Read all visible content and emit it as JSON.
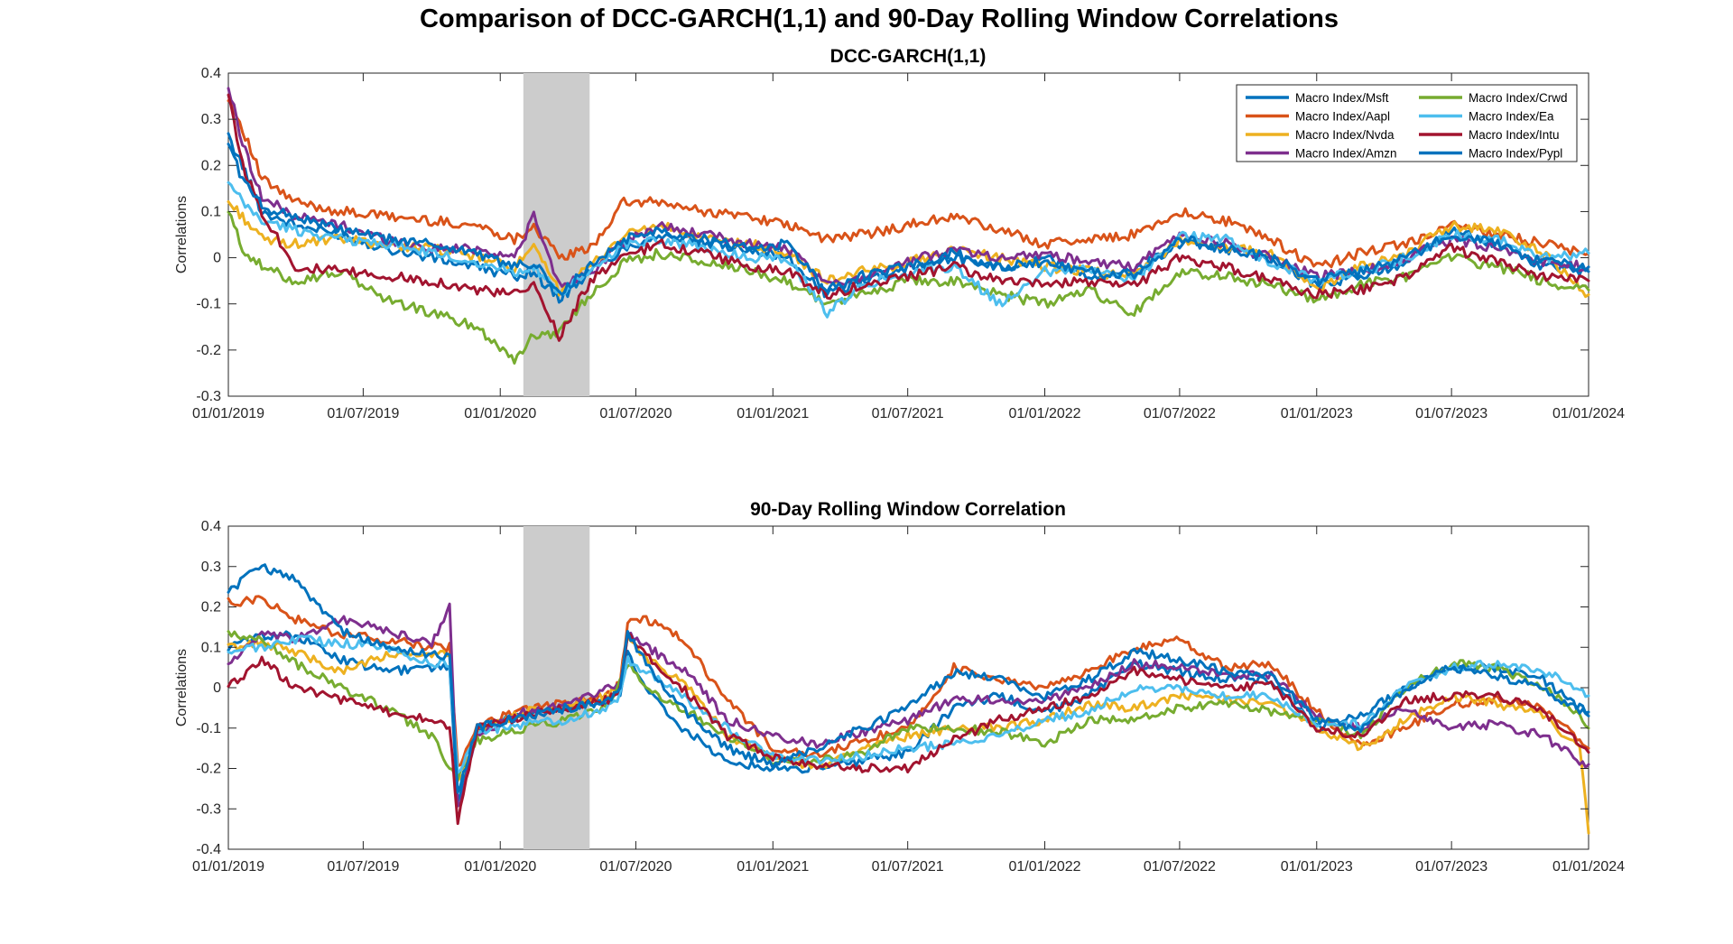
{
  "figure": {
    "title": "Comparison of DCC-GARCH(1,1) and 90-Day Rolling Window Correlations"
  },
  "colors": {
    "Msft": "#0072BD",
    "Aapl": "#D95319",
    "Nvda": "#EDB120",
    "Amzn": "#7E2F8E",
    "Crwd": "#77AC30",
    "Ea": "#4DBEEE",
    "Intu": "#A2142F",
    "Pypl": "#0072BD",
    "shade": "#cccccc"
  },
  "chart_data": [
    {
      "type": "line",
      "title": "DCC-GARCH(1,1)",
      "xlabel": "",
      "ylabel": "Correlations",
      "xlim": [
        "2019-01-01",
        "2024-01-01"
      ],
      "ylim": [
        -0.3,
        0.4
      ],
      "x_ticks": [
        "01/01/2019",
        "01/07/2019",
        "01/01/2020",
        "01/07/2020",
        "01/01/2021",
        "01/07/2021",
        "01/01/2022",
        "01/07/2022",
        "01/01/2023",
        "01/07/2023",
        "01/01/2024"
      ],
      "y_ticks": [
        "0.4",
        "0.3",
        "0.2",
        "0.1",
        "0",
        "-0.1",
        "-0.2",
        "-0.3"
      ],
      "shaded_region": [
        "2020-02-01",
        "2020-04-30"
      ],
      "grid": false,
      "legend_placement": "top-right",
      "x": [
        "2019-01-01",
        "2019-01-20",
        "2019-02-15",
        "2019-04-01",
        "2019-06-01",
        "2019-08-01",
        "2019-10-01",
        "2019-12-01",
        "2020-01-20",
        "2020-02-15",
        "2020-03-20",
        "2020-05-01",
        "2020-06-15",
        "2020-08-01",
        "2020-10-01",
        "2020-12-01",
        "2021-01-20",
        "2021-03-15",
        "2021-05-01",
        "2021-07-01",
        "2021-09-01",
        "2021-11-01",
        "2022-01-01",
        "2022-03-01",
        "2022-05-01",
        "2022-07-01",
        "2022-09-01",
        "2022-11-01",
        "2023-01-01",
        "2023-03-01",
        "2023-05-01",
        "2023-07-01",
        "2023-09-01",
        "2023-11-01",
        "2024-01-01"
      ],
      "series": [
        {
          "name": "Macro Index/Msft",
          "key": "Msft",
          "values": [
            0.26,
            0.2,
            0.1,
            0.07,
            0.05,
            0.02,
            0.0,
            -0.02,
            -0.04,
            -0.03,
            -0.09,
            -0.03,
            0.02,
            0.05,
            0.03,
            0.02,
            0.0,
            -0.08,
            -0.05,
            -0.02,
            0.0,
            -0.02,
            0.0,
            -0.04,
            -0.03,
            0.03,
            0.02,
            0.0,
            -0.06,
            -0.04,
            -0.01,
            0.06,
            0.03,
            -0.02,
            -0.03
          ]
        },
        {
          "name": "Macro Index/Aapl",
          "key": "Aapl",
          "values": [
            0.35,
            0.28,
            0.17,
            0.12,
            0.1,
            0.09,
            0.08,
            0.07,
            0.04,
            0.07,
            0.0,
            0.02,
            0.12,
            0.12,
            0.1,
            0.09,
            0.07,
            0.04,
            0.05,
            0.07,
            0.09,
            0.06,
            0.03,
            0.04,
            0.05,
            0.1,
            0.08,
            0.04,
            -0.02,
            0.01,
            0.03,
            0.07,
            0.05,
            0.03,
            0.01
          ]
        },
        {
          "name": "Macro Index/Nvda",
          "key": "Nvda",
          "values": [
            0.12,
            0.09,
            0.04,
            0.03,
            0.04,
            0.03,
            0.02,
            0.0,
            -0.02,
            0.02,
            -0.07,
            -0.02,
            0.05,
            0.07,
            0.04,
            0.03,
            0.01,
            -0.05,
            -0.03,
            -0.01,
            0.02,
            0.0,
            -0.02,
            -0.03,
            -0.04,
            0.04,
            0.02,
            0.01,
            -0.07,
            -0.02,
            0.01,
            0.07,
            0.06,
            0.01,
            -0.08
          ]
        },
        {
          "name": "Macro Index/Amzn",
          "key": "Amzn",
          "values": [
            0.37,
            0.25,
            0.13,
            0.09,
            0.07,
            0.04,
            0.02,
            0.02,
            0.0,
            0.09,
            -0.06,
            -0.03,
            0.03,
            0.07,
            0.05,
            0.03,
            0.02,
            -0.06,
            -0.04,
            -0.01,
            0.02,
            0.0,
            0.01,
            -0.01,
            -0.02,
            0.05,
            0.03,
            0.0,
            -0.04,
            -0.03,
            0.0,
            0.04,
            0.02,
            -0.01,
            -0.02
          ]
        },
        {
          "name": "Macro Index/Crwd",
          "key": "Crwd",
          "values": [
            0.1,
            0.02,
            -0.02,
            -0.05,
            -0.03,
            -0.09,
            -0.12,
            -0.15,
            -0.22,
            -0.17,
            -0.16,
            -0.08,
            -0.01,
            0.01,
            -0.01,
            -0.03,
            -0.05,
            -0.1,
            -0.08,
            -0.05,
            -0.05,
            -0.08,
            -0.1,
            -0.07,
            -0.12,
            -0.03,
            -0.04,
            -0.06,
            -0.09,
            -0.06,
            -0.04,
            0.0,
            -0.02,
            -0.05,
            -0.07
          ]
        },
        {
          "name": "Macro Index/Ea",
          "key": "Ea",
          "values": [
            0.16,
            0.12,
            0.08,
            0.06,
            0.04,
            0.03,
            0.01,
            -0.01,
            -0.03,
            -0.02,
            -0.08,
            -0.03,
            0.03,
            0.04,
            0.02,
            0.0,
            0.0,
            -0.12,
            -0.06,
            -0.03,
            -0.02,
            -0.1,
            -0.03,
            -0.02,
            -0.05,
            0.05,
            0.04,
            -0.01,
            -0.05,
            -0.03,
            0.0,
            0.05,
            0.04,
            0.0,
            0.01
          ]
        },
        {
          "name": "Macro Index/Intu",
          "key": "Intu",
          "values": [
            0.36,
            0.2,
            0.1,
            -0.02,
            -0.03,
            -0.04,
            -0.05,
            -0.07,
            -0.08,
            -0.06,
            -0.17,
            -0.05,
            0.0,
            0.03,
            0.01,
            -0.02,
            -0.03,
            -0.08,
            -0.06,
            -0.04,
            -0.02,
            -0.05,
            -0.06,
            -0.05,
            -0.06,
            0.0,
            -0.02,
            -0.05,
            -0.08,
            -0.07,
            -0.04,
            0.02,
            -0.01,
            -0.04,
            -0.05
          ]
        },
        {
          "name": "Macro Index/Pypl",
          "key": "Pypl",
          "values": [
            0.25,
            0.17,
            0.11,
            0.09,
            0.06,
            0.04,
            0.03,
            0.01,
            -0.02,
            -0.01,
            -0.08,
            -0.02,
            0.04,
            0.06,
            0.04,
            0.02,
            0.03,
            -0.07,
            -0.04,
            -0.02,
            0.01,
            -0.02,
            -0.01,
            -0.03,
            -0.04,
            0.04,
            0.02,
            0.0,
            -0.05,
            -0.03,
            0.0,
            0.05,
            0.03,
            -0.01,
            -0.02
          ]
        }
      ]
    },
    {
      "type": "line",
      "title": "90-Day Rolling Window Correlation",
      "xlabel": "",
      "ylabel": "Correlations",
      "xlim": [
        "2019-01-01",
        "2024-01-01"
      ],
      "ylim": [
        -0.4,
        0.4
      ],
      "x_ticks": [
        "01/01/2019",
        "01/07/2019",
        "01/01/2020",
        "01/07/2020",
        "01/01/2021",
        "01/07/2021",
        "01/01/2022",
        "01/07/2022",
        "01/01/2023",
        "01/07/2023",
        "01/01/2024"
      ],
      "y_ticks": [
        "0.4",
        "0.3",
        "0.2",
        "0.1",
        "0",
        "-0.1",
        "-0.2",
        "-0.3",
        "-0.4"
      ],
      "shaded_region": [
        "2020-02-01",
        "2020-04-30"
      ],
      "grid": false,
      "x": [
        "2019-01-01",
        "2019-02-15",
        "2019-04-01",
        "2019-06-01",
        "2019-08-01",
        "2019-10-01",
        "2019-10-25",
        "2019-11-05",
        "2019-12-01",
        "2020-02-01",
        "2020-04-01",
        "2020-05-25",
        "2020-06-10",
        "2020-06-20",
        "2020-07-15",
        "2020-09-01",
        "2020-11-01",
        "2021-01-01",
        "2021-03-01",
        "2021-05-01",
        "2021-07-01",
        "2021-09-01",
        "2021-11-01",
        "2022-01-01",
        "2022-03-01",
        "2022-05-01",
        "2022-07-01",
        "2022-09-01",
        "2022-11-01",
        "2023-01-01",
        "2023-03-01",
        "2023-05-01",
        "2023-07-01",
        "2023-09-01",
        "2023-11-01",
        "2023-12-20",
        "2024-01-01"
      ],
      "series": [
        {
          "name": "Macro Index/Msft",
          "key": "Msft",
          "values": [
            0.1,
            0.13,
            0.13,
            0.07,
            0.04,
            0.05,
            0.05,
            -0.28,
            -0.1,
            -0.07,
            -0.05,
            -0.03,
            -0.01,
            0.09,
            0.0,
            -0.1,
            -0.18,
            -0.2,
            -0.2,
            -0.18,
            -0.16,
            -0.05,
            -0.02,
            -0.06,
            -0.02,
            0.06,
            0.04,
            0.02,
            0.02,
            -0.1,
            -0.07,
            0.0,
            0.05,
            0.05,
            0.02,
            -0.05,
            -0.06
          ]
        },
        {
          "name": "Macro Index/Aapl",
          "key": "Aapl",
          "values": [
            0.21,
            0.22,
            0.17,
            0.13,
            0.12,
            0.1,
            0.1,
            -0.2,
            -0.1,
            -0.05,
            -0.04,
            -0.02,
            0.01,
            0.16,
            0.17,
            0.12,
            -0.03,
            -0.15,
            -0.17,
            -0.13,
            -0.1,
            0.05,
            0.02,
            0.0,
            0.04,
            0.1,
            0.12,
            0.05,
            0.06,
            -0.06,
            -0.14,
            -0.1,
            -0.04,
            -0.03,
            -0.05,
            -0.13,
            -0.15
          ]
        },
        {
          "name": "Macro Index/Nvda",
          "key": "Nvda",
          "values": [
            0.1,
            0.11,
            0.09,
            0.04,
            0.08,
            0.08,
            0.08,
            -0.24,
            -0.11,
            -0.06,
            -0.04,
            -0.02,
            0.01,
            0.13,
            0.07,
            0.02,
            -0.12,
            -0.17,
            -0.2,
            -0.15,
            -0.12,
            -0.1,
            -0.1,
            -0.08,
            -0.04,
            -0.05,
            -0.02,
            -0.03,
            -0.04,
            -0.1,
            -0.15,
            -0.08,
            -0.02,
            -0.04,
            -0.07,
            -0.15,
            -0.36
          ]
        },
        {
          "name": "Macro Index/Amzn",
          "key": "Amzn",
          "values": [
            0.06,
            0.13,
            0.12,
            0.17,
            0.14,
            0.11,
            0.2,
            -0.3,
            -0.12,
            -0.06,
            -0.04,
            0.0,
            0.01,
            0.13,
            0.1,
            0.05,
            -0.08,
            -0.12,
            -0.14,
            -0.11,
            -0.08,
            -0.03,
            -0.03,
            -0.03,
            0.0,
            0.06,
            0.05,
            0.03,
            0.03,
            -0.07,
            -0.1,
            -0.05,
            -0.1,
            -0.09,
            -0.12,
            -0.18,
            -0.19
          ]
        },
        {
          "name": "Macro Index/Crwd",
          "key": "Crwd",
          "values": [
            0.13,
            0.12,
            0.06,
            0.0,
            -0.05,
            -0.12,
            -0.2,
            -0.22,
            -0.13,
            -0.1,
            -0.08,
            -0.05,
            0.02,
            0.06,
            0.0,
            -0.05,
            -0.12,
            -0.18,
            -0.18,
            -0.16,
            -0.1,
            -0.1,
            -0.11,
            -0.14,
            -0.08,
            -0.08,
            -0.05,
            -0.04,
            -0.06,
            -0.08,
            -0.12,
            0.0,
            0.06,
            0.05,
            0.0,
            -0.07,
            -0.1
          ]
        },
        {
          "name": "Macro Index/Ea",
          "key": "Ea",
          "values": [
            0.09,
            0.1,
            0.12,
            0.11,
            0.1,
            0.06,
            0.06,
            -0.22,
            -0.11,
            -0.09,
            -0.08,
            -0.05,
            -0.02,
            0.07,
            0.04,
            -0.02,
            -0.1,
            -0.17,
            -0.18,
            -0.17,
            -0.15,
            -0.14,
            -0.12,
            -0.08,
            -0.06,
            0.0,
            0.0,
            -0.02,
            -0.02,
            -0.09,
            -0.09,
            0.0,
            0.05,
            0.06,
            0.04,
            0.0,
            -0.02
          ]
        },
        {
          "name": "Macro Index/Intu",
          "key": "Intu",
          "values": [
            0.0,
            0.07,
            0.0,
            -0.03,
            -0.06,
            -0.08,
            -0.1,
            -0.33,
            -0.1,
            -0.07,
            -0.05,
            -0.03,
            0.0,
            0.13,
            0.08,
            0.0,
            -0.12,
            -0.17,
            -0.19,
            -0.2,
            -0.2,
            -0.13,
            -0.08,
            -0.05,
            -0.02,
            0.04,
            0.02,
            0.0,
            0.01,
            -0.1,
            -0.12,
            -0.03,
            -0.02,
            -0.02,
            -0.06,
            -0.14,
            -0.16
          ]
        },
        {
          "name": "Macro Index/Pypl",
          "key": "Pypl",
          "values": [
            0.24,
            0.3,
            0.27,
            0.14,
            0.1,
            0.08,
            0.08,
            -0.26,
            -0.1,
            -0.07,
            -0.05,
            -0.03,
            -0.01,
            0.14,
            0.06,
            -0.05,
            -0.15,
            -0.19,
            -0.15,
            -0.1,
            -0.05,
            0.04,
            0.02,
            -0.02,
            0.02,
            0.09,
            0.07,
            0.04,
            0.03,
            -0.08,
            -0.1,
            0.0,
            0.05,
            0.03,
            0.0,
            -0.06,
            -0.07
          ]
        }
      ]
    }
  ]
}
